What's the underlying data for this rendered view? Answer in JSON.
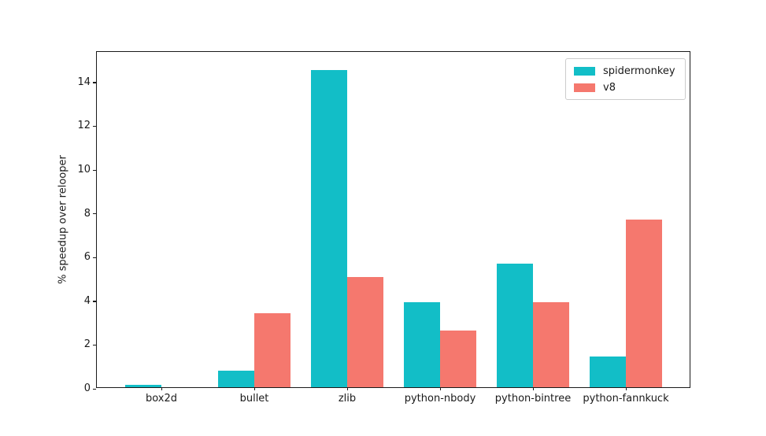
{
  "chart_data": {
    "type": "bar",
    "title": "",
    "xlabel": "",
    "ylabel": "% speedup over relooper",
    "categories": [
      "box2d",
      "bullet",
      "zlib",
      "python-nbody",
      "python-bintree",
      "python-fannkuck"
    ],
    "series": [
      {
        "name": "spidermonkey",
        "color": "#12bec7",
        "values": [
          0.1,
          0.75,
          14.5,
          3.9,
          5.65,
          1.4
        ]
      },
      {
        "name": "v8",
        "color": "#f5786e",
        "values": [
          0,
          3.4,
          5.05,
          2.6,
          3.9,
          7.65
        ]
      }
    ],
    "ylim": [
      0,
      15.4
    ],
    "yticks": [
      0,
      2,
      4,
      6,
      8,
      10,
      12,
      14
    ],
    "legend": {
      "position": "upper right",
      "entries": [
        "spidermonkey",
        "v8"
      ]
    },
    "grid": false,
    "background": "#ffffff",
    "axis_color": "#1a1a1a"
  }
}
